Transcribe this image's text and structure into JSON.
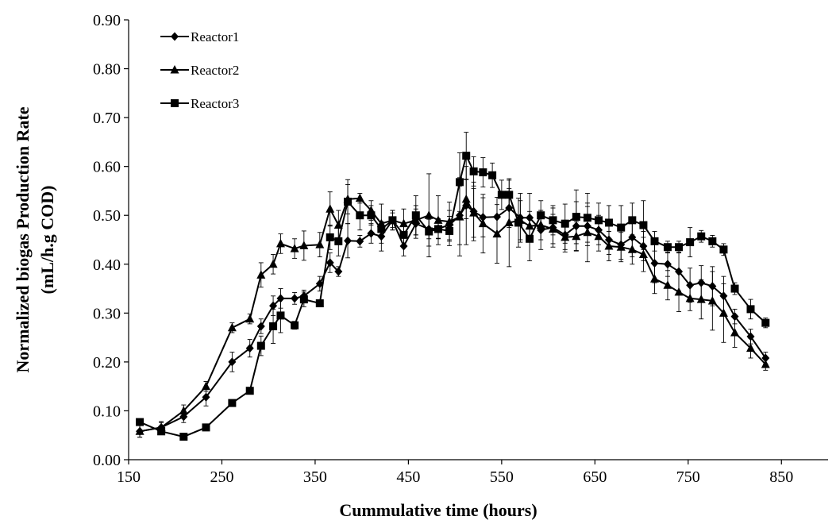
{
  "chart_data": {
    "type": "line",
    "title": "",
    "xlabel": "Cummulative time (hours)",
    "ylabel": [
      "Normalized  biogas Production Rate",
      "(mL/h.g COD)"
    ],
    "xlim": [
      150,
      900
    ],
    "ylim": [
      0,
      0.9
    ],
    "xticks": [
      "150",
      "250",
      "350",
      "450",
      "550",
      "650",
      "750",
      "850"
    ],
    "yticks": [
      "0.00",
      "0.10",
      "0.20",
      "0.30",
      "0.40",
      "0.50",
      "0.60",
      "0.70",
      "0.80",
      "0.90"
    ],
    "grid": false,
    "legend_position": "top-left",
    "series": [
      {
        "name": "Reactor1",
        "marker": "diamond",
        "color": "#000000",
        "points": [
          [
            162,
            0.058,
            0.012
          ],
          [
            185,
            0.066,
            0.01
          ],
          [
            209,
            0.088,
            0.012
          ],
          [
            233,
            0.128,
            0.018
          ],
          [
            261,
            0.2,
            0.02
          ],
          [
            280,
            0.228,
            0.018
          ],
          [
            292,
            0.273,
            0.015
          ],
          [
            305,
            0.315,
            0.02
          ],
          [
            313,
            0.33,
            0.02
          ],
          [
            328,
            0.33,
            0.012
          ],
          [
            338,
            0.335,
            0.012
          ],
          [
            355,
            0.36,
            0.015
          ],
          [
            366,
            0.403,
            0.02
          ],
          [
            375,
            0.385,
            0.01
          ],
          [
            385,
            0.448,
            0.035
          ],
          [
            398,
            0.447,
            0.012
          ],
          [
            410,
            0.463,
            0.02
          ],
          [
            421,
            0.457,
            0.03
          ],
          [
            433,
            0.49,
            0.015
          ],
          [
            445,
            0.437,
            0.02
          ],
          [
            458,
            0.483,
            0.03
          ],
          [
            472,
            0.472,
            0.02
          ],
          [
            482,
            0.473,
            0.02
          ],
          [
            494,
            0.48,
            0.03
          ],
          [
            505,
            0.5,
            0.06
          ],
          [
            512,
            0.52,
            0.08
          ],
          [
            520,
            0.508,
            0.06
          ],
          [
            530,
            0.496,
            0.04
          ],
          [
            545,
            0.497,
            0.04
          ],
          [
            558,
            0.515,
            0.04
          ],
          [
            570,
            0.495,
            0.05
          ],
          [
            580,
            0.495,
            0.05
          ],
          [
            592,
            0.47,
            0.04
          ],
          [
            605,
            0.475,
            0.04
          ],
          [
            618,
            0.46,
            0.03
          ],
          [
            630,
            0.478,
            0.05
          ],
          [
            642,
            0.478,
            0.04
          ],
          [
            654,
            0.47,
            0.03
          ],
          [
            665,
            0.45,
            0.03
          ],
          [
            678,
            0.44,
            0.03
          ],
          [
            690,
            0.455,
            0.04
          ],
          [
            702,
            0.437,
            0.03
          ],
          [
            714,
            0.402,
            0.04
          ],
          [
            728,
            0.4,
            0.025
          ],
          [
            740,
            0.385,
            0.04
          ],
          [
            752,
            0.357,
            0.035
          ],
          [
            764,
            0.362,
            0.035
          ],
          [
            776,
            0.355,
            0.04
          ],
          [
            788,
            0.335,
            0.04
          ],
          [
            800,
            0.293,
            0.015
          ],
          [
            817,
            0.252,
            0.015
          ],
          [
            833,
            0.208,
            0.012
          ]
        ]
      },
      {
        "name": "Reactor2",
        "marker": "triangle",
        "color": "#000000",
        "points": [
          [
            162,
            0.058,
            0.012
          ],
          [
            185,
            0.066,
            0.012
          ],
          [
            209,
            0.1,
            0.012
          ],
          [
            233,
            0.15,
            0.01
          ],
          [
            261,
            0.27,
            0.01
          ],
          [
            280,
            0.288,
            0.01
          ],
          [
            292,
            0.378,
            0.025
          ],
          [
            305,
            0.4,
            0.02
          ],
          [
            313,
            0.442,
            0.02
          ],
          [
            328,
            0.432,
            0.02
          ],
          [
            338,
            0.438,
            0.03
          ],
          [
            355,
            0.44,
            0.025
          ],
          [
            366,
            0.513,
            0.035
          ],
          [
            375,
            0.48,
            0.03
          ],
          [
            385,
            0.533,
            0.03
          ],
          [
            398,
            0.535,
            0.01
          ],
          [
            410,
            0.51,
            0.02
          ],
          [
            421,
            0.483,
            0.04
          ],
          [
            433,
            0.49,
            0.02
          ],
          [
            445,
            0.483,
            0.03
          ],
          [
            458,
            0.49,
            0.03
          ],
          [
            472,
            0.5,
            0.085
          ],
          [
            482,
            0.49,
            0.05
          ],
          [
            494,
            0.487,
            0.04
          ],
          [
            505,
            0.497,
            0.08
          ],
          [
            512,
            0.533,
            0.04
          ],
          [
            520,
            0.505,
            0.05
          ],
          [
            530,
            0.483,
            0.06
          ],
          [
            545,
            0.462,
            0.06
          ],
          [
            558,
            0.485,
            0.09
          ],
          [
            570,
            0.49,
            0.04
          ],
          [
            580,
            0.478,
            0.03
          ],
          [
            592,
            0.48,
            0.03
          ],
          [
            605,
            0.472,
            0.03
          ],
          [
            618,
            0.455,
            0.03
          ],
          [
            630,
            0.457,
            0.03
          ],
          [
            642,
            0.465,
            0.06
          ],
          [
            654,
            0.457,
            0.03
          ],
          [
            665,
            0.437,
            0.03
          ],
          [
            678,
            0.435,
            0.03
          ],
          [
            690,
            0.43,
            0.03
          ],
          [
            702,
            0.42,
            0.035
          ],
          [
            714,
            0.37,
            0.03
          ],
          [
            728,
            0.357,
            0.03
          ],
          [
            740,
            0.343,
            0.04
          ],
          [
            752,
            0.33,
            0.025
          ],
          [
            764,
            0.328,
            0.04
          ],
          [
            776,
            0.325,
            0.06
          ],
          [
            788,
            0.3,
            0.06
          ],
          [
            800,
            0.26,
            0.03
          ],
          [
            817,
            0.228,
            0.02
          ],
          [
            833,
            0.195,
            0.012
          ]
        ]
      },
      {
        "name": "Reactor3",
        "marker": "square",
        "color": "#000000",
        "points": [
          [
            162,
            0.077,
            0.006
          ],
          [
            185,
            0.058,
            0.006
          ],
          [
            209,
            0.047,
            0.006
          ],
          [
            233,
            0.066,
            0.006
          ],
          [
            261,
            0.116,
            0.006
          ],
          [
            280,
            0.141,
            0.006
          ],
          [
            292,
            0.233,
            0.02
          ],
          [
            305,
            0.273,
            0.035
          ],
          [
            313,
            0.295,
            0.035
          ],
          [
            328,
            0.275,
            0.008
          ],
          [
            338,
            0.328,
            0.015
          ],
          [
            355,
            0.32,
            0.006
          ],
          [
            366,
            0.455,
            0.025
          ],
          [
            375,
            0.447,
            0.03
          ],
          [
            385,
            0.528,
            0.045
          ],
          [
            398,
            0.5,
            0.03
          ],
          [
            410,
            0.5,
            0.02
          ],
          [
            421,
            0.472,
            0.015
          ],
          [
            433,
            0.49,
            0.02
          ],
          [
            445,
            0.46,
            0.02
          ],
          [
            458,
            0.5,
            0.04
          ],
          [
            472,
            0.467,
            0.03
          ],
          [
            482,
            0.472,
            0.02
          ],
          [
            494,
            0.468,
            0.03
          ],
          [
            505,
            0.568,
            0.06
          ],
          [
            512,
            0.622,
            0.048
          ],
          [
            520,
            0.59,
            0.03
          ],
          [
            530,
            0.588,
            0.03
          ],
          [
            540,
            0.582,
            0.025
          ],
          [
            550,
            0.542,
            0.03
          ],
          [
            558,
            0.542,
            0.03
          ],
          [
            568,
            0.485,
            0.05
          ],
          [
            580,
            0.452,
            0.045
          ],
          [
            592,
            0.5,
            0.03
          ],
          [
            605,
            0.49,
            0.03
          ],
          [
            618,
            0.483,
            0.04
          ],
          [
            630,
            0.497,
            0.055
          ],
          [
            642,
            0.495,
            0.05
          ],
          [
            654,
            0.49,
            0.035
          ],
          [
            665,
            0.485,
            0.035
          ],
          [
            678,
            0.475,
            0.045
          ],
          [
            690,
            0.49,
            0.035
          ],
          [
            702,
            0.48,
            0.05
          ],
          [
            714,
            0.447,
            0.02
          ],
          [
            728,
            0.435,
            0.012
          ],
          [
            740,
            0.435,
            0.012
          ],
          [
            752,
            0.445,
            0.03
          ],
          [
            764,
            0.457,
            0.012
          ],
          [
            776,
            0.447,
            0.012
          ],
          [
            788,
            0.43,
            0.012
          ],
          [
            800,
            0.35,
            0.012
          ],
          [
            817,
            0.308,
            0.02
          ],
          [
            833,
            0.28,
            0.01
          ]
        ]
      }
    ]
  }
}
